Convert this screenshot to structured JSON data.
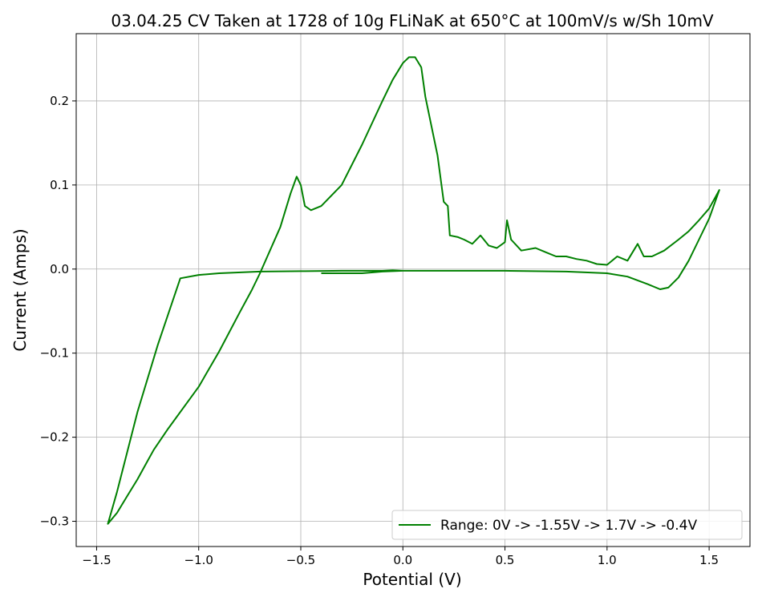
{
  "chart_data": {
    "type": "line",
    "title": "03.04.25 CV Taken at 1728 of 10g FLiNaK at 650°C at 100mV/s w/Sh 10mV",
    "xlabel": "Potential (V)",
    "ylabel": "Current (Amps)",
    "xlim": [
      -1.6,
      1.7
    ],
    "ylim": [
      -0.33,
      0.28
    ],
    "x_ticks": [
      -1.5,
      -1.0,
      -0.5,
      0.0,
      0.5,
      1.0,
      1.5
    ],
    "x_tick_labels": [
      "−1.5",
      "−1.0",
      "−0.5",
      "0.0",
      "0.5",
      "1.0",
      "1.5"
    ],
    "y_ticks": [
      -0.3,
      -0.2,
      -0.1,
      0.0,
      0.1,
      0.2
    ],
    "y_tick_labels": [
      "−0.3",
      "−0.2",
      "−0.1",
      "0.0",
      "0.1",
      "0.2"
    ],
    "grid": true,
    "legend_position": "lower-right",
    "series": [
      {
        "name": "Range: 0V -> -1.55V -> 1.7V -> -0.4V",
        "color": "#008000",
        "points": [
          [
            0.0,
            -0.002
          ],
          [
            -0.05,
            -0.0015
          ],
          [
            -0.1,
            -0.002
          ],
          [
            -0.3,
            -0.002
          ],
          [
            -0.5,
            -0.0025
          ],
          [
            -0.7,
            -0.003
          ],
          [
            -0.9,
            -0.005
          ],
          [
            -1.0,
            -0.007
          ],
          [
            -1.09,
            -0.011
          ],
          [
            -1.2,
            -0.09
          ],
          [
            -1.3,
            -0.17
          ],
          [
            -1.4,
            -0.265
          ],
          [
            -1.445,
            -0.303
          ],
          [
            -1.4,
            -0.29
          ],
          [
            -1.35,
            -0.27
          ],
          [
            -1.3,
            -0.25
          ],
          [
            -1.25,
            -0.228
          ],
          [
            -1.22,
            -0.215
          ],
          [
            -1.15,
            -0.19
          ],
          [
            -1.0,
            -0.14
          ],
          [
            -0.9,
            -0.098
          ],
          [
            -0.8,
            -0.052
          ],
          [
            -0.74,
            -0.025
          ],
          [
            -0.7,
            -0.005
          ],
          [
            -0.6,
            0.05
          ],
          [
            -0.55,
            0.09
          ],
          [
            -0.52,
            0.11
          ],
          [
            -0.5,
            0.1
          ],
          [
            -0.48,
            0.075
          ],
          [
            -0.45,
            0.07
          ],
          [
            -0.4,
            0.075
          ],
          [
            -0.3,
            0.1
          ],
          [
            -0.2,
            0.148
          ],
          [
            -0.1,
            0.2
          ],
          [
            -0.05,
            0.225
          ],
          [
            0.0,
            0.245
          ],
          [
            0.03,
            0.252
          ],
          [
            0.06,
            0.252
          ],
          [
            0.09,
            0.24
          ],
          [
            0.11,
            0.205
          ],
          [
            0.14,
            0.17
          ],
          [
            0.17,
            0.135
          ],
          [
            0.2,
            0.08
          ],
          [
            0.22,
            0.075
          ],
          [
            0.23,
            0.04
          ],
          [
            0.27,
            0.038
          ],
          [
            0.3,
            0.035
          ],
          [
            0.34,
            0.03
          ],
          [
            0.38,
            0.04
          ],
          [
            0.42,
            0.028
          ],
          [
            0.46,
            0.025
          ],
          [
            0.5,
            0.032
          ],
          [
            0.51,
            0.058
          ],
          [
            0.53,
            0.035
          ],
          [
            0.58,
            0.022
          ],
          [
            0.65,
            0.025
          ],
          [
            0.7,
            0.02
          ],
          [
            0.75,
            0.015
          ],
          [
            0.8,
            0.015
          ],
          [
            0.85,
            0.012
          ],
          [
            0.9,
            0.01
          ],
          [
            0.95,
            0.006
          ],
          [
            1.0,
            0.005
          ],
          [
            1.05,
            0.015
          ],
          [
            1.1,
            0.01
          ],
          [
            1.15,
            0.03
          ],
          [
            1.18,
            0.015
          ],
          [
            1.22,
            0.015
          ],
          [
            1.28,
            0.022
          ],
          [
            1.35,
            0.035
          ],
          [
            1.4,
            0.045
          ],
          [
            1.45,
            0.058
          ],
          [
            1.5,
            0.072
          ],
          [
            1.55,
            0.094
          ],
          [
            1.5,
            0.06
          ],
          [
            1.45,
            0.035
          ],
          [
            1.4,
            0.01
          ],
          [
            1.35,
            -0.01
          ],
          [
            1.3,
            -0.022
          ],
          [
            1.26,
            -0.024
          ],
          [
            1.2,
            -0.018
          ],
          [
            1.1,
            -0.009
          ],
          [
            1.0,
            -0.005
          ],
          [
            0.8,
            -0.003
          ],
          [
            0.5,
            -0.002
          ],
          [
            0.2,
            -0.002
          ],
          [
            0.0,
            -0.002
          ],
          [
            -0.1,
            -0.003
          ],
          [
            -0.2,
            -0.005
          ],
          [
            -0.3,
            -0.005
          ],
          [
            -0.4,
            -0.005
          ]
        ]
      }
    ]
  }
}
